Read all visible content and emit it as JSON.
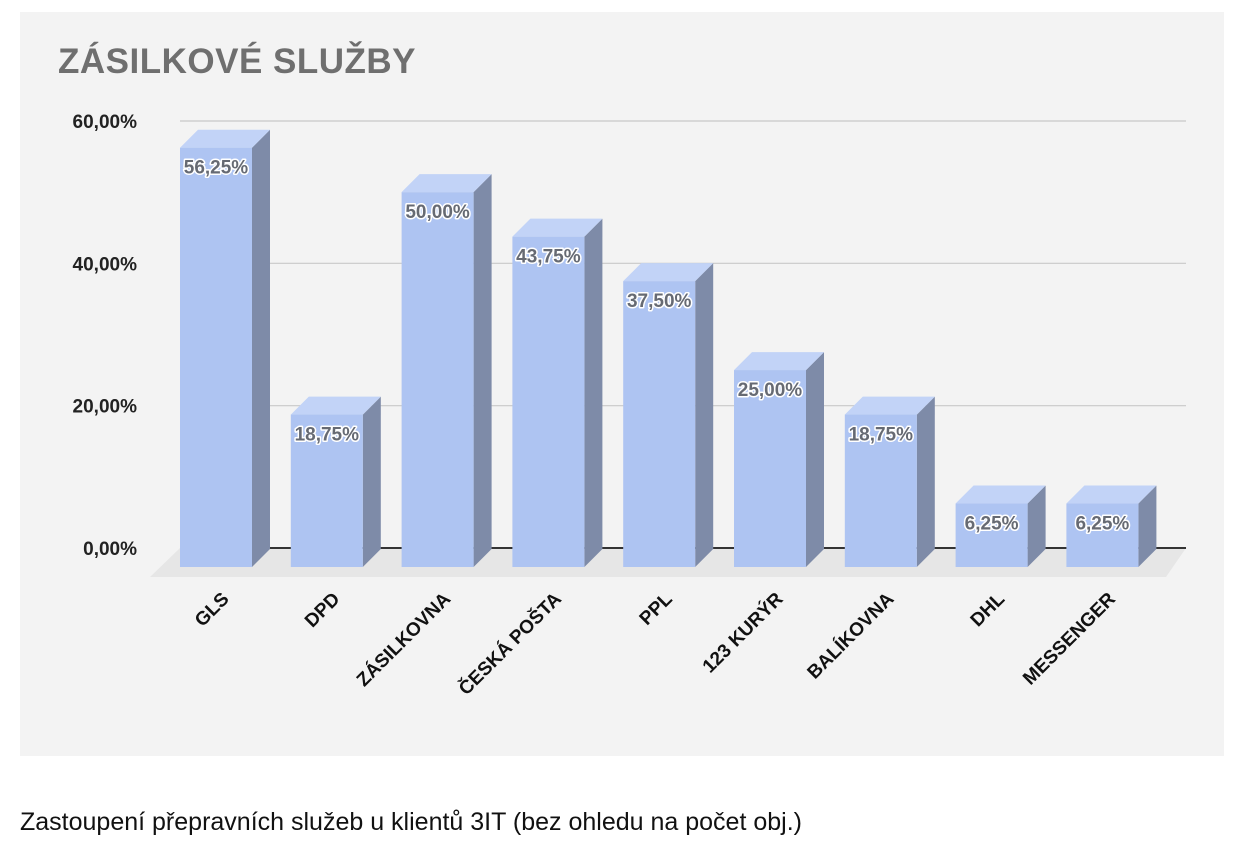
{
  "chart_data": {
    "type": "bar",
    "title": "ZÁSILKOVÉ SLUŽBY",
    "categories": [
      "GLS",
      "DPD",
      "ZÁSILKOVNA",
      "ČESKÁ POŠTA",
      "PPL",
      "123 KURÝR",
      "BALÍKOVNA",
      "DHL",
      "MESSENGER"
    ],
    "values": [
      56.25,
      18.75,
      50.0,
      43.75,
      37.5,
      25.0,
      18.75,
      6.25,
      6.25
    ],
    "data_labels": [
      "56,25%",
      "18,75%",
      "50,00%",
      "43,75%",
      "37,50%",
      "25,00%",
      "18,75%",
      "6,25%",
      "6,25%"
    ],
    "y_ticks": [
      0,
      20,
      40,
      60
    ],
    "y_tick_labels": [
      "0,00%",
      "20,00%",
      "40,00%",
      "60,00%"
    ],
    "ylim": [
      0,
      60
    ],
    "xlabel": "",
    "ylabel": "",
    "grid": true,
    "legend": "none",
    "style": "3d-columns",
    "colors": {
      "bar_front": "#aec4f2",
      "bar_top": "#c2d3f7",
      "bar_side": "#7e8ba8",
      "grid": "#c8c8c8",
      "baseline": "#333333"
    }
  },
  "caption": "Zastoupení přepravních služeb u klientů 3IT (bez ohledu na počet obj.)"
}
